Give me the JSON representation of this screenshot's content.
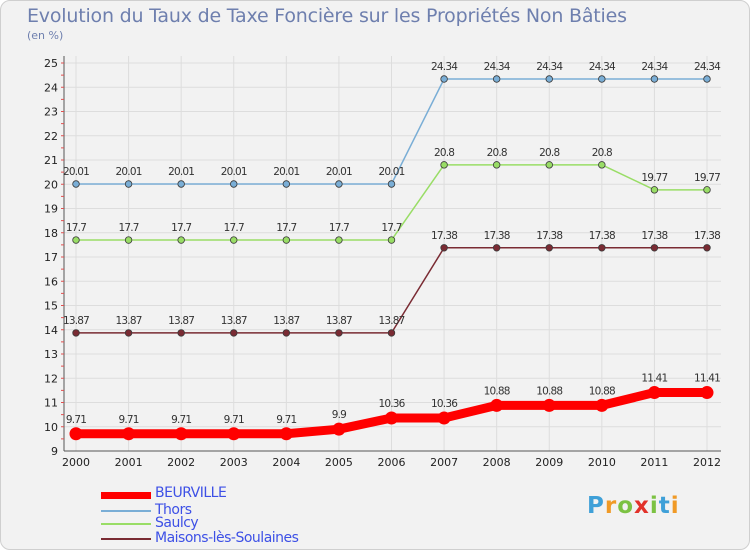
{
  "title": "Evolution du Taux de Taxe Foncière sur les Propriétés Non Bâties",
  "unit_label": "(en %)",
  "logo": {
    "text": "Proxiti",
    "letters": [
      "P",
      "r",
      "o",
      "x",
      "i",
      "t",
      "i"
    ],
    "colors": [
      "#3fa0d8",
      "#f09a26",
      "#7cc243",
      "#e2322a",
      "#7cc243",
      "#3fa0d8",
      "#f09a26"
    ]
  },
  "chart_data": {
    "type": "line",
    "title": "Evolution du Taux de Taxe Foncière sur les Propriétés Non Bâties",
    "ylabel": "(en %)",
    "categories": [
      "2000",
      "2001",
      "2002",
      "2003",
      "2004",
      "2005",
      "2006",
      "2007",
      "2008",
      "2009",
      "2010",
      "2011",
      "2012"
    ],
    "yticks": [
      "9",
      "10",
      "11",
      "12",
      "13",
      "14",
      "15",
      "16",
      "17",
      "18",
      "19",
      "20",
      "21",
      "22",
      "23",
      "24",
      "25"
    ],
    "ylim": [
      9,
      25
    ],
    "grid": true,
    "series": [
      {
        "name": "BEURVILLE",
        "color": "#ff0000",
        "values": [
          9.71,
          9.71,
          9.71,
          9.71,
          9.71,
          9.9,
          10.36,
          10.36,
          10.88,
          10.88,
          10.88,
          11.41,
          11.41
        ],
        "labels": [
          "9.71",
          "9.71",
          "9.71",
          "9.71",
          "9.71",
          "9.9",
          "10.36",
          "10.36",
          "10.88",
          "10.88",
          "10.88",
          "11.41",
          "11.41"
        ]
      },
      {
        "name": "Thors",
        "color": "#7aaed6",
        "values": [
          20.01,
          20.01,
          20.01,
          20.01,
          20.01,
          20.01,
          20.01,
          24.34,
          24.34,
          24.34,
          24.34,
          24.34,
          24.34
        ],
        "labels": [
          "20.01",
          "20.01",
          "20.01",
          "20.01",
          "20.01",
          "20.01",
          "20.01",
          "24.34",
          "24.34",
          "24.34",
          "24.34",
          "24.34",
          "24.34"
        ]
      },
      {
        "name": "Saulcy",
        "color": "#99dd66",
        "values": [
          17.7,
          17.7,
          17.7,
          17.7,
          17.7,
          17.7,
          17.7,
          20.8,
          20.8,
          20.8,
          20.8,
          19.77,
          19.77
        ],
        "labels": [
          "17.7",
          "17.7",
          "17.7",
          "17.7",
          "17.7",
          "17.7",
          "17.7",
          "20.8",
          "20.8",
          "20.8",
          "20.8",
          "19.77",
          "19.77"
        ]
      },
      {
        "name": "Maisons-lès-Soulaines",
        "color": "#7a2b33",
        "values": [
          13.87,
          13.87,
          13.87,
          13.87,
          13.87,
          13.87,
          13.87,
          17.38,
          17.38,
          17.38,
          17.38,
          17.38,
          17.38
        ],
        "labels": [
          "13.87",
          "13.87",
          "13.87",
          "13.87",
          "13.87",
          "13.87",
          "13.87",
          "17.38",
          "17.38",
          "17.38",
          "17.38",
          "17.38",
          "17.38"
        ]
      }
    ],
    "legend_position": "bottom-left"
  }
}
